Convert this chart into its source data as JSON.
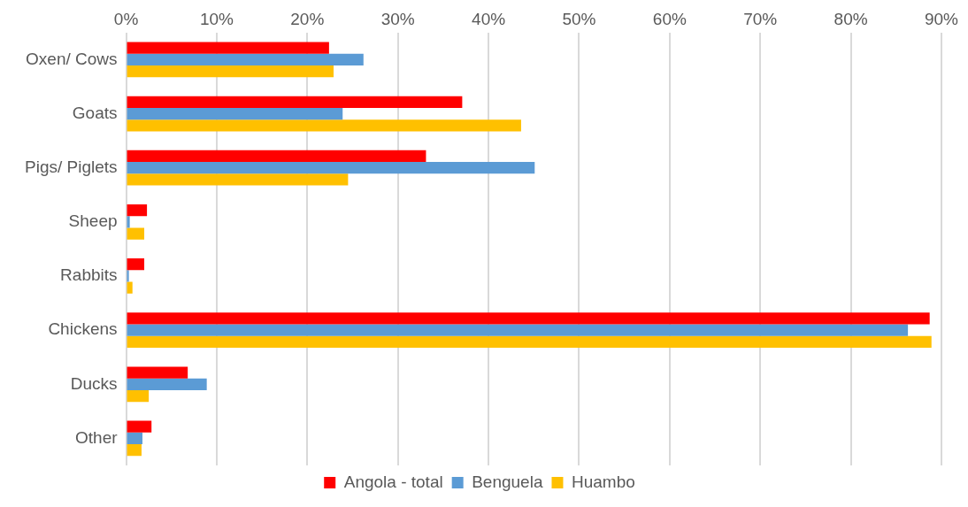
{
  "chart_data": {
    "type": "bar",
    "orientation": "horizontal",
    "categories": [
      "Oxen/ Cows",
      "Goats",
      "Pigs/ Piglets",
      "Sheep",
      "Rabbits",
      "Chickens",
      "Ducks",
      "Other"
    ],
    "series": [
      {
        "name": "Angola - total",
        "color": "#ff0000",
        "values": [
          22.4,
          37.1,
          33.1,
          2.3,
          2.0,
          88.7,
          6.8,
          2.8
        ]
      },
      {
        "name": "Benguela",
        "color": "#5b9bd5",
        "values": [
          26.2,
          23.9,
          45.1,
          0.4,
          0.3,
          86.3,
          8.9,
          1.8
        ]
      },
      {
        "name": "Huambo",
        "color": "#ffc000",
        "values": [
          22.9,
          43.6,
          24.5,
          2.0,
          0.7,
          88.9,
          2.5,
          1.7
        ]
      }
    ],
    "xlim": [
      0,
      90
    ],
    "xticks": [
      {
        "value": 0,
        "label": "0%"
      },
      {
        "value": 10,
        "label": "10%"
      },
      {
        "value": 20,
        "label": "20%"
      },
      {
        "value": 30,
        "label": "30%"
      },
      {
        "value": 40,
        "label": "40%"
      },
      {
        "value": 50,
        "label": "50%"
      },
      {
        "value": 60,
        "label": "60%"
      },
      {
        "value": 70,
        "label": "70%"
      },
      {
        "value": 80,
        "label": "80%"
      },
      {
        "value": 90,
        "label": "90%"
      }
    ],
    "grid": "x",
    "legend": "bottom"
  }
}
